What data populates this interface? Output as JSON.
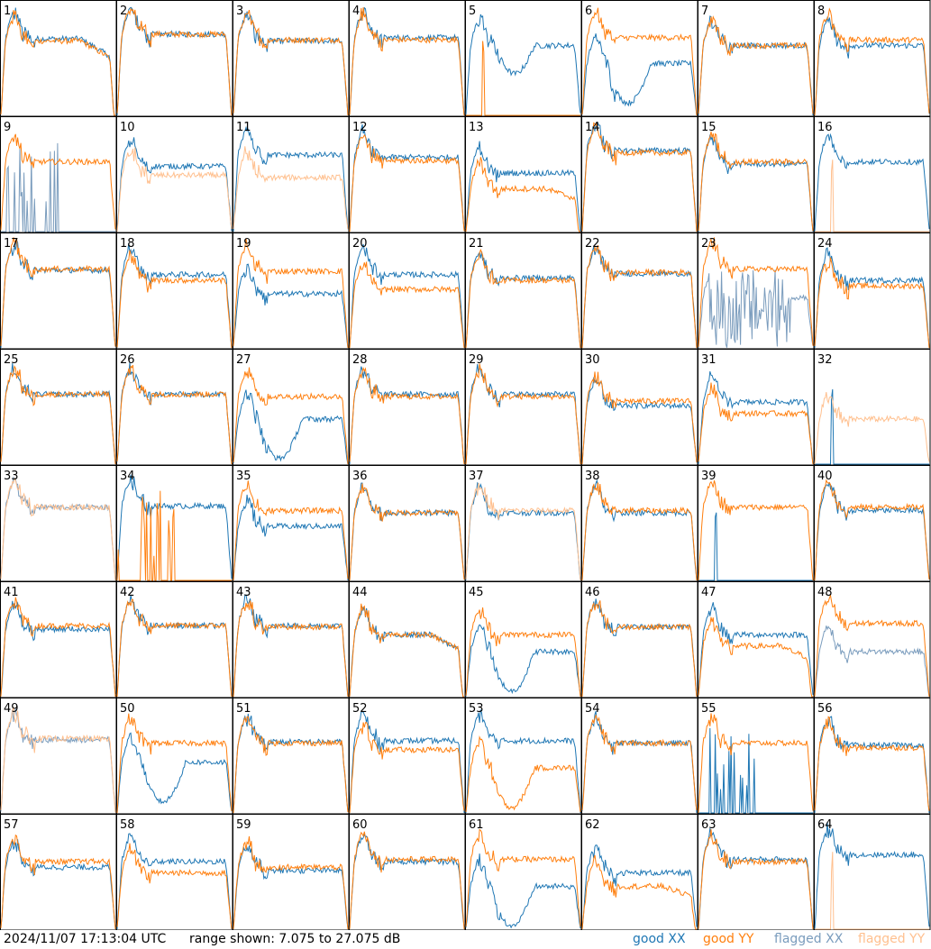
{
  "footer": {
    "timestamp": "2024/11/07 17:13:04 UTC",
    "range_text": "range shown: 7.075 to 27.075 dB"
  },
  "legend": [
    {
      "key": "good_xx",
      "word": "good",
      "pol": "XX",
      "color": "#1f77b4"
    },
    {
      "key": "good_yy",
      "word": "good",
      "pol": "YY",
      "color": "#ff7f0e"
    },
    {
      "key": "flagged_xx",
      "word": "flagged",
      "pol": "XX",
      "color": "#7a9cbd"
    },
    {
      "key": "flagged_yy",
      "word": "flagged",
      "pol": "YY",
      "color": "#ffc08f"
    }
  ],
  "chart_data": {
    "type": "line",
    "layout": "small-multiples-8x8",
    "ylim_db": [
      7.075,
      27.075
    ],
    "series_styles": {
      "good_xx": "#1f77b4",
      "good_yy": "#ff7f0e",
      "flagged_xx": "#7a9cbd",
      "flagged_yy": "#ffc08f"
    },
    "panels": [
      {
        "label": "1",
        "xx": "good",
        "yy": "good",
        "xx_level": 0.68,
        "yy_level": 0.66,
        "xx_shape": "droop",
        "yy_shape": "droop"
      },
      {
        "label": "2",
        "xx": "good",
        "yy": "good",
        "xx_level": 0.72,
        "yy_level": 0.72
      },
      {
        "label": "3",
        "xx": "good",
        "yy": "good",
        "xx_level": 0.66,
        "yy_level": 0.67
      },
      {
        "label": "4",
        "xx": "good",
        "yy": "good",
        "xx_level": 0.69,
        "yy_level": 0.67
      },
      {
        "label": "5",
        "xx": "good",
        "yy": "good",
        "xx_level": 0.62,
        "yy_level": 0.0,
        "xx_shape": "dip",
        "yy_shape": "spike"
      },
      {
        "label": "6",
        "xx": "good",
        "yy": "good",
        "xx_level": 0.46,
        "yy_level": 0.69,
        "xx_shape": "deepdip"
      },
      {
        "label": "7",
        "xx": "good",
        "yy": "good",
        "xx_level": 0.62,
        "yy_level": 0.62
      },
      {
        "label": "8",
        "xx": "good",
        "yy": "good",
        "xx_level": 0.62,
        "yy_level": 0.67
      },
      {
        "label": "9",
        "xx": "flagged",
        "yy": "good",
        "xx_level": 0.0,
        "yy_level": 0.62,
        "xx_shape": "spikes"
      },
      {
        "label": "10",
        "xx": "good",
        "yy": "flagged",
        "xx_level": 0.58,
        "yy_level": 0.5
      },
      {
        "label": "11",
        "xx": "good",
        "yy": "flagged",
        "xx_level": 0.68,
        "yy_level": 0.48
      },
      {
        "label": "12",
        "xx": "good",
        "yy": "good",
        "xx_level": 0.66,
        "yy_level": 0.63
      },
      {
        "label": "13",
        "xx": "good",
        "yy": "good",
        "xx_level": 0.52,
        "yy_level": 0.38,
        "yy_shape": "droop"
      },
      {
        "label": "14",
        "xx": "good",
        "yy": "good",
        "xx_level": 0.72,
        "yy_level": 0.7
      },
      {
        "label": "15",
        "xx": "good",
        "yy": "good",
        "xx_level": 0.6,
        "yy_level": 0.62
      },
      {
        "label": "16",
        "xx": "good",
        "yy": "flagged",
        "xx_level": 0.62,
        "yy_level": 0.0,
        "yy_shape": "spike"
      },
      {
        "label": "17",
        "xx": "good",
        "yy": "good",
        "xx_level": 0.69,
        "yy_level": 0.7
      },
      {
        "label": "18",
        "xx": "good",
        "yy": "good",
        "xx_level": 0.65,
        "yy_level": 0.6
      },
      {
        "label": "19",
        "xx": "good",
        "yy": "good",
        "xx_level": 0.48,
        "yy_level": 0.68
      },
      {
        "label": "20",
        "xx": "good",
        "yy": "good",
        "xx_level": 0.65,
        "yy_level": 0.52
      },
      {
        "label": "21",
        "xx": "good",
        "yy": "good",
        "xx_level": 0.62,
        "yy_level": 0.6
      },
      {
        "label": "22",
        "xx": "good",
        "yy": "good",
        "xx_level": 0.66,
        "yy_level": 0.67
      },
      {
        "label": "23",
        "xx": "flagged",
        "yy": "good",
        "xx_level": 0.45,
        "yy_level": 0.7,
        "xx_shape": "noisy"
      },
      {
        "label": "24",
        "xx": "good",
        "yy": "good",
        "xx_level": 0.6,
        "yy_level": 0.55
      },
      {
        "label": "25",
        "xx": "good",
        "yy": "good",
        "xx_level": 0.62,
        "yy_level": 0.62
      },
      {
        "label": "26",
        "xx": "good",
        "yy": "good",
        "xx_level": 0.62,
        "yy_level": 0.62
      },
      {
        "label": "27",
        "xx": "good",
        "yy": "good",
        "xx_level": 0.4,
        "yy_level": 0.6,
        "xx_shape": "deepdip"
      },
      {
        "label": "28",
        "xx": "good",
        "yy": "good",
        "xx_level": 0.62,
        "yy_level": 0.6
      },
      {
        "label": "29",
        "xx": "good",
        "yy": "good",
        "xx_level": 0.62,
        "yy_level": 0.6
      },
      {
        "label": "30",
        "xx": "good",
        "yy": "good",
        "xx_level": 0.52,
        "yy_level": 0.56
      },
      {
        "label": "31",
        "xx": "good",
        "yy": "good",
        "xx_level": 0.55,
        "yy_level": 0.45
      },
      {
        "label": "32",
        "xx": "good",
        "yy": "flagged",
        "xx_level": 0.0,
        "yy_level": 0.4,
        "xx_shape": "spike"
      },
      {
        "label": "33",
        "xx": "flagged",
        "yy": "flagged",
        "xx_level": 0.65,
        "yy_level": 0.65
      },
      {
        "label": "34",
        "xx": "good",
        "yy": "good",
        "xx_level": 0.66,
        "yy_level": 0.0,
        "yy_shape": "spikes"
      },
      {
        "label": "35",
        "xx": "good",
        "yy": "good",
        "xx_level": 0.48,
        "yy_level": 0.62
      },
      {
        "label": "36",
        "xx": "good",
        "yy": "good",
        "xx_level": 0.6,
        "yy_level": 0.6
      },
      {
        "label": "37",
        "xx": "good",
        "yy": "flagged",
        "xx_level": 0.6,
        "yy_level": 0.62
      },
      {
        "label": "38",
        "xx": "good",
        "yy": "good",
        "xx_level": 0.6,
        "yy_level": 0.62
      },
      {
        "label": "39",
        "xx": "good",
        "yy": "good",
        "xx_level": 0.0,
        "yy_level": 0.65,
        "xx_shape": "spike"
      },
      {
        "label": "40",
        "xx": "good",
        "yy": "good",
        "xx_level": 0.62,
        "yy_level": 0.65
      },
      {
        "label": "41",
        "xx": "good",
        "yy": "good",
        "xx_level": 0.6,
        "yy_level": 0.63
      },
      {
        "label": "42",
        "xx": "good",
        "yy": "good",
        "xx_level": 0.63,
        "yy_level": 0.63
      },
      {
        "label": "43",
        "xx": "good",
        "yy": "good",
        "xx_level": 0.63,
        "yy_level": 0.62
      },
      {
        "label": "44",
        "xx": "good",
        "yy": "good",
        "xx_level": 0.55,
        "yy_level": 0.55,
        "xx_shape": "droop",
        "yy_shape": "droop"
      },
      {
        "label": "45",
        "xx": "good",
        "yy": "good",
        "xx_level": 0.4,
        "yy_level": 0.55,
        "xx_shape": "deepdip"
      },
      {
        "label": "46",
        "xx": "good",
        "yy": "good",
        "xx_level": 0.62,
        "yy_level": 0.62
      },
      {
        "label": "47",
        "xx": "good",
        "yy": "good",
        "xx_level": 0.55,
        "yy_level": 0.45,
        "yy_shape": "droop"
      },
      {
        "label": "48",
        "xx": "flagged",
        "yy": "good",
        "xx_level": 0.4,
        "yy_level": 0.65
      },
      {
        "label": "49",
        "xx": "flagged",
        "yy": "flagged",
        "xx_level": 0.65,
        "yy_level": 0.66
      },
      {
        "label": "50",
        "xx": "good",
        "yy": "good",
        "xx_level": 0.45,
        "yy_level": 0.62,
        "xx_shape": "deepdip"
      },
      {
        "label": "51",
        "xx": "good",
        "yy": "good",
        "xx_level": 0.63,
        "yy_level": 0.62
      },
      {
        "label": "52",
        "xx": "good",
        "yy": "good",
        "xx_level": 0.64,
        "yy_level": 0.56
      },
      {
        "label": "53",
        "xx": "good",
        "yy": "good",
        "xx_level": 0.64,
        "yy_level": 0.4,
        "yy_shape": "deepdip"
      },
      {
        "label": "54",
        "xx": "good",
        "yy": "good",
        "xx_level": 0.62,
        "yy_level": 0.62
      },
      {
        "label": "55",
        "xx": "good",
        "yy": "good",
        "xx_level": 0.0,
        "yy_level": 0.62,
        "xx_shape": "spikes"
      },
      {
        "label": "56",
        "xx": "good",
        "yy": "good",
        "xx_level": 0.6,
        "yy_level": 0.58
      },
      {
        "label": "57",
        "xx": "good",
        "yy": "good",
        "xx_level": 0.55,
        "yy_level": 0.6
      },
      {
        "label": "58",
        "xx": "good",
        "yy": "good",
        "xx_level": 0.6,
        "yy_level": 0.5
      },
      {
        "label": "59",
        "xx": "good",
        "yy": "good",
        "xx_level": 0.52,
        "yy_level": 0.55
      },
      {
        "label": "60",
        "xx": "good",
        "yy": "good",
        "xx_level": 0.6,
        "yy_level": 0.62
      },
      {
        "label": "61",
        "xx": "good",
        "yy": "good",
        "xx_level": 0.38,
        "yy_level": 0.62,
        "xx_shape": "deepdip"
      },
      {
        "label": "62",
        "xx": "good",
        "yy": "good",
        "xx_level": 0.5,
        "yy_level": 0.38,
        "yy_shape": "droop"
      },
      {
        "label": "63",
        "xx": "good",
        "yy": "good",
        "xx_level": 0.62,
        "yy_level": 0.6
      },
      {
        "label": "64",
        "xx": "good",
        "yy": "flagged",
        "xx_level": 0.66,
        "yy_level": 0.0,
        "yy_shape": "spike"
      }
    ]
  }
}
